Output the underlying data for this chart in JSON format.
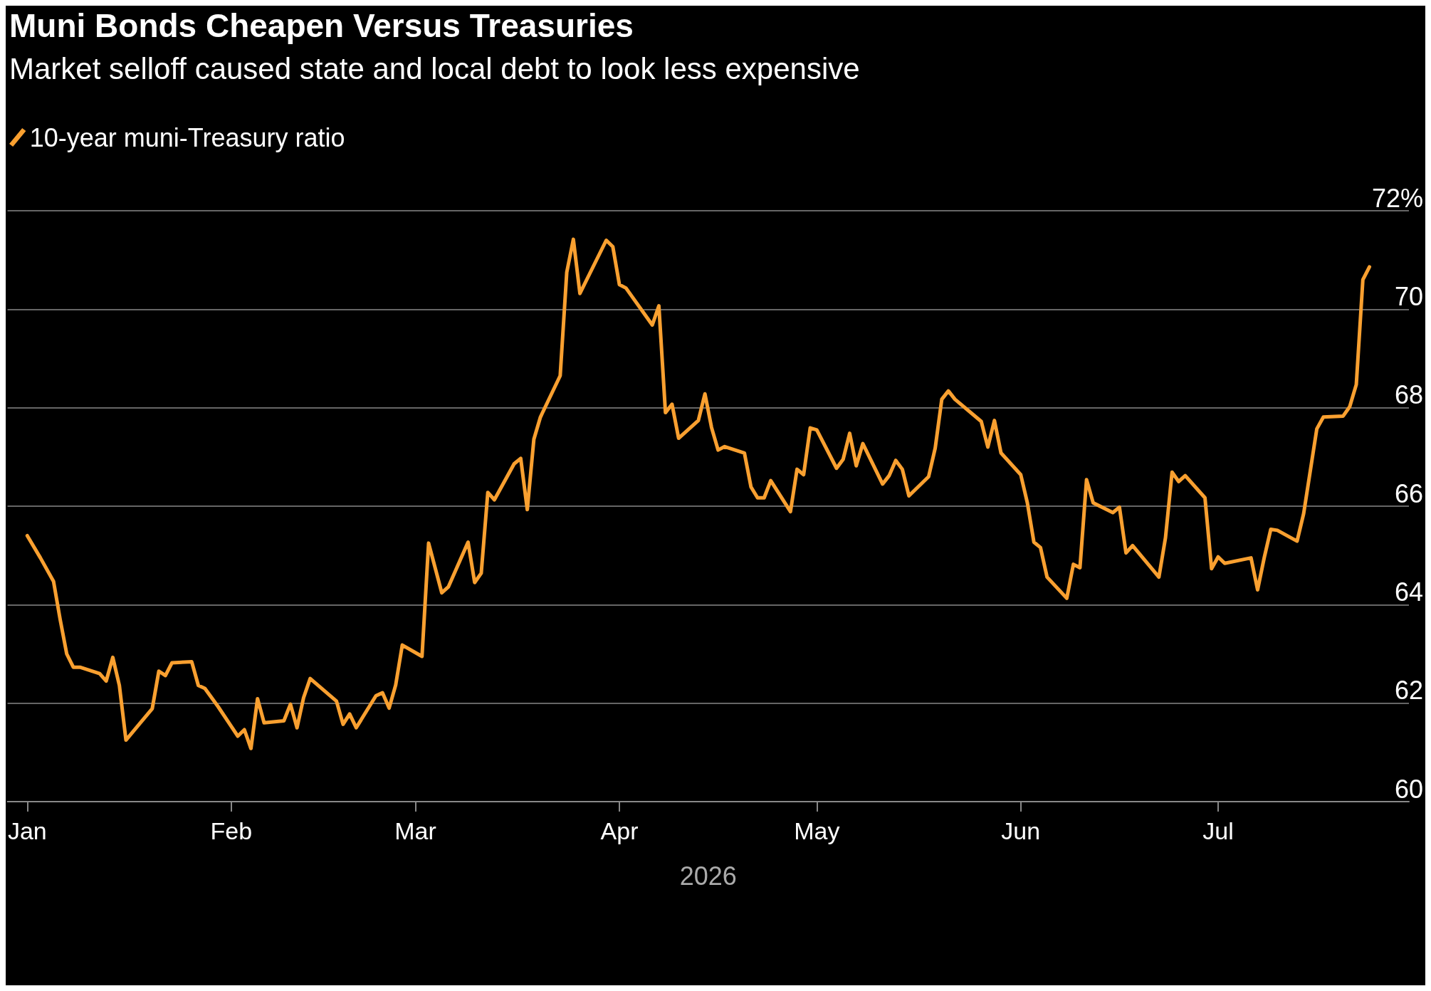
{
  "chart_data": {
    "type": "line",
    "title": "Muni Bonds Cheapen Versus Treasuries",
    "subtitle": "Market selloff caused state and local debt to look less expensive",
    "xlabel": "2026",
    "x": [
      "2026-01-01",
      "2026-01-03",
      "2026-01-05",
      "2026-01-06",
      "2026-01-07",
      "2026-01-08",
      "2026-01-09",
      "2026-01-12",
      "2026-01-13",
      "2026-01-14",
      "2026-01-15",
      "2026-01-16",
      "2026-01-20",
      "2026-01-21",
      "2026-01-22",
      "2026-01-23",
      "2026-01-26",
      "2026-01-27",
      "2026-01-28",
      "2026-01-30",
      "2026-02-02",
      "2026-02-03",
      "2026-02-04",
      "2026-02-05",
      "2026-02-06",
      "2026-02-09",
      "2026-02-10",
      "2026-02-11",
      "2026-02-12",
      "2026-02-13",
      "2026-02-17",
      "2026-02-18",
      "2026-02-19",
      "2026-02-20",
      "2026-02-23",
      "2026-02-24",
      "2026-02-25",
      "2026-02-26",
      "2026-02-27",
      "2026-03-02",
      "2026-03-03",
      "2026-03-05",
      "2026-03-06",
      "2026-03-09",
      "2026-03-10",
      "2026-03-11",
      "2026-03-12",
      "2026-03-13",
      "2026-03-16",
      "2026-03-17",
      "2026-03-18",
      "2026-03-19",
      "2026-03-20",
      "2026-03-23",
      "2026-03-24",
      "2026-03-25",
      "2026-03-26",
      "2026-03-30",
      "2026-03-31",
      "2026-04-01",
      "2026-04-02",
      "2026-04-06",
      "2026-04-07",
      "2026-04-08",
      "2026-04-09",
      "2026-04-10",
      "2026-04-13",
      "2026-04-14",
      "2026-04-15",
      "2026-04-16",
      "2026-04-17",
      "2026-04-20",
      "2026-04-21",
      "2026-04-22",
      "2026-04-23",
      "2026-04-24",
      "2026-04-27",
      "2026-04-28",
      "2026-04-29",
      "2026-04-30",
      "2026-05-01",
      "2026-05-04",
      "2026-05-05",
      "2026-05-06",
      "2026-05-07",
      "2026-05-08",
      "2026-05-11",
      "2026-05-12",
      "2026-05-13",
      "2026-05-14",
      "2026-05-15",
      "2026-05-18",
      "2026-05-19",
      "2026-05-20",
      "2026-05-21",
      "2026-05-22",
      "2026-05-26",
      "2026-05-27",
      "2026-05-28",
      "2026-05-29",
      "2026-06-01",
      "2026-06-02",
      "2026-06-03",
      "2026-06-04",
      "2026-06-05",
      "2026-06-08",
      "2026-06-09",
      "2026-06-10",
      "2026-06-11",
      "2026-06-12",
      "2026-06-15",
      "2026-06-16",
      "2026-06-17",
      "2026-06-18",
      "2026-06-22",
      "2026-06-23",
      "2026-06-24",
      "2026-06-25",
      "2026-06-26",
      "2026-06-29",
      "2026-06-30",
      "2026-07-01",
      "2026-07-02",
      "2026-07-06",
      "2026-07-07",
      "2026-07-08",
      "2026-07-09",
      "2026-07-10",
      "2026-07-13",
      "2026-07-14",
      "2026-07-16",
      "2026-07-17",
      "2026-07-20",
      "2026-07-21",
      "2026-07-22",
      "2026-07-23",
      "2026-07-24"
    ],
    "series": [
      {
        "name": "10-year muni-Treasury ratio",
        "color": "#f9a030",
        "values": [
          65.4,
          64.95,
          64.47,
          63.7,
          63.0,
          62.73,
          62.73,
          62.6,
          62.45,
          62.93,
          62.36,
          61.25,
          61.89,
          62.65,
          62.56,
          62.82,
          62.84,
          62.36,
          62.3,
          61.93,
          61.33,
          61.46,
          61.08,
          62.09,
          61.6,
          61.64,
          61.98,
          61.5,
          62.11,
          62.5,
          62.04,
          61.57,
          61.78,
          61.5,
          62.15,
          62.21,
          61.9,
          62.37,
          63.18,
          62.95,
          65.25,
          64.24,
          64.36,
          65.27,
          64.45,
          64.64,
          66.28,
          66.13,
          66.86,
          66.97,
          65.93,
          67.36,
          67.81,
          68.65,
          70.75,
          71.42,
          70.32,
          71.4,
          71.27,
          70.5,
          70.43,
          69.68,
          70.07,
          67.9,
          68.07,
          67.38,
          67.74,
          68.28,
          67.6,
          67.14,
          67.21,
          67.08,
          66.39,
          66.17,
          66.17,
          66.52,
          65.89,
          66.75,
          66.64,
          67.59,
          67.55,
          66.77,
          66.95,
          67.48,
          66.82,
          67.27,
          66.45,
          66.62,
          66.93,
          66.75,
          66.21,
          66.6,
          67.18,
          68.17,
          68.34,
          68.17,
          67.72,
          67.2,
          67.74,
          67.08,
          66.64,
          66.07,
          65.27,
          65.16,
          64.56,
          64.13,
          64.82,
          64.75,
          66.54,
          66.07,
          65.87,
          65.98,
          65.05,
          65.2,
          64.56,
          65.36,
          66.69,
          66.5,
          66.62,
          66.17,
          64.73,
          64.97,
          64.84,
          64.95,
          64.3,
          64.95,
          65.53,
          65.51,
          65.29,
          65.85,
          67.57,
          67.81,
          67.83,
          68.02,
          68.47,
          70.6,
          70.86
        ]
      }
    ],
    "xlim": [
      "2025-12-29",
      "2026-07-30"
    ],
    "xticks": [
      {
        "value": "2026-01-01",
        "label": "Jan"
      },
      {
        "value": "2026-02-01",
        "label": "Feb"
      },
      {
        "value": "2026-03-01",
        "label": "Mar"
      },
      {
        "value": "2026-04-01",
        "label": "Apr"
      },
      {
        "value": "2026-05-01",
        "label": "May"
      },
      {
        "value": "2026-06-01",
        "label": "Jun"
      },
      {
        "value": "2026-07-01",
        "label": "Jul"
      }
    ],
    "ylim": [
      60,
      72
    ],
    "yticks": [
      60,
      62,
      64,
      66,
      68,
      70,
      {
        "value": 72,
        "label": "72%"
      }
    ],
    "grid": "y",
    "legend": "top left",
    "marker": "none",
    "line_style": "solid"
  }
}
